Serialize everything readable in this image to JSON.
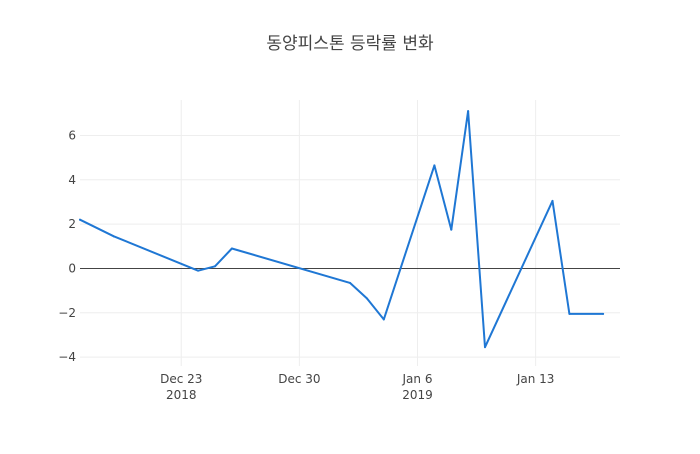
{
  "chart_data": {
    "type": "line",
    "title": "동양피스톤 등락률 변화",
    "xlabel": "",
    "ylabel": "",
    "x_range": [
      "2018-12-17",
      "2019-01-18"
    ],
    "ylim": [
      -4.4,
      7.6
    ],
    "grid": true,
    "zero_line": true,
    "x_ticks": [
      {
        "date": "2018-12-23",
        "label": "Dec 23",
        "sublabel": "2018"
      },
      {
        "date": "2018-12-30",
        "label": "Dec 30",
        "sublabel": ""
      },
      {
        "date": "2019-01-06",
        "label": "Jan 6",
        "sublabel": "2019"
      },
      {
        "date": "2019-01-13",
        "label": "Jan 13",
        "sublabel": ""
      }
    ],
    "y_ticks": [
      {
        "value": -4,
        "label": "−4"
      },
      {
        "value": -2,
        "label": "−2"
      },
      {
        "value": 0,
        "label": "0"
      },
      {
        "value": 2,
        "label": "2"
      },
      {
        "value": 4,
        "label": "4"
      },
      {
        "value": 6,
        "label": "6"
      }
    ],
    "series": [
      {
        "color": "#1f77d4",
        "points": [
          {
            "x": "2018-12-17",
            "y": 2.2
          },
          {
            "x": "2018-12-19",
            "y": 1.45
          },
          {
            "x": "2018-12-24",
            "y": -0.1
          },
          {
            "x": "2018-12-25",
            "y": 0.1
          },
          {
            "x": "2018-12-26",
            "y": 0.9
          },
          {
            "x": "2019-01-02",
            "y": -0.65
          },
          {
            "x": "2019-01-03",
            "y": -1.35
          },
          {
            "x": "2019-01-04",
            "y": -2.3
          },
          {
            "x": "2019-01-07",
            "y": 4.65
          },
          {
            "x": "2019-01-08",
            "y": 1.75
          },
          {
            "x": "2019-01-09",
            "y": 7.1
          },
          {
            "x": "2019-01-10",
            "y": -3.55
          },
          {
            "x": "2019-01-14",
            "y": 3.05
          },
          {
            "x": "2019-01-15",
            "y": -2.05
          },
          {
            "x": "2019-01-17",
            "y": -2.05
          }
        ]
      }
    ]
  }
}
